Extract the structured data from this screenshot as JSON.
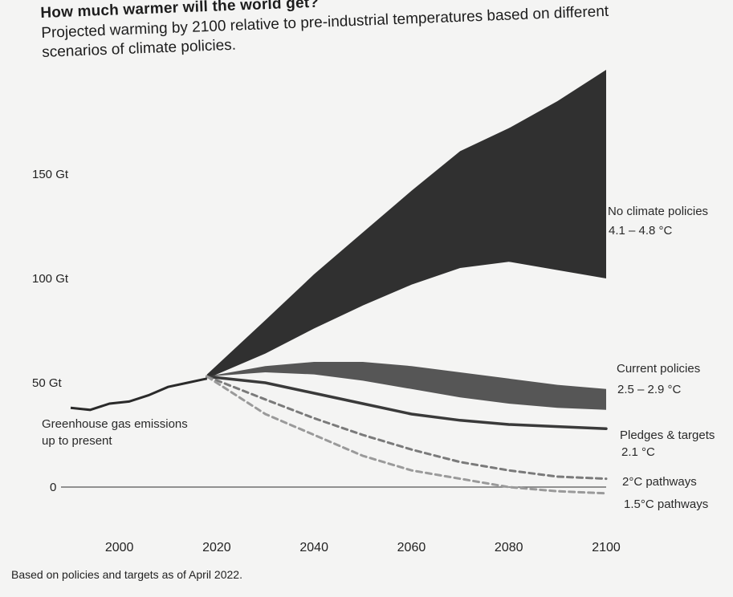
{
  "chart_data": {
    "type": "area",
    "title": "How much warmer will the world get?",
    "subtitle": "Projected warming by 2100 relative to pre-industrial temperatures based on different scenarios of climate policies.",
    "xlabel": "",
    "ylabel": "",
    "xlim": [
      1990,
      2100
    ],
    "ylim": [
      -5,
      185
    ],
    "x_ticks": [
      "2000",
      "2020",
      "2040",
      "2060",
      "2080",
      "2100"
    ],
    "y_ticks": [
      {
        "value": 0,
        "label": "0"
      },
      {
        "value": 50,
        "label": "50 Gt"
      },
      {
        "value": 100,
        "label": "100 Gt"
      },
      {
        "value": 150,
        "label": "150 Gt"
      }
    ],
    "historical": {
      "name": "Greenhouse gas emissions up to present",
      "x": [
        1990,
        1994,
        1998,
        2002,
        2006,
        2010,
        2014,
        2018
      ],
      "y": [
        38,
        37,
        40,
        41,
        44,
        48,
        50,
        52
      ]
    },
    "bands": [
      {
        "name": "No climate policies",
        "label_line1": "No climate policies",
        "label_line2": "4.1 – 4.8 °C",
        "color": "#252525",
        "x": [
          2018,
          2030,
          2040,
          2050,
          2060,
          2070,
          2080,
          2090,
          2100
        ],
        "upper": [
          54,
          80,
          102,
          122,
          142,
          161,
          172,
          185,
          200
        ],
        "lower": [
          52,
          64,
          76,
          87,
          97,
          105,
          108,
          104,
          100
        ]
      },
      {
        "name": "Current policies",
        "label_line1": "Current policies",
        "label_line2": "2.5 – 2.9 °C",
        "color": "#4d4d4d",
        "x": [
          2018,
          2030,
          2040,
          2050,
          2060,
          2070,
          2080,
          2090,
          2100
        ],
        "upper": [
          53,
          58,
          60,
          60,
          58,
          55,
          52,
          49,
          47
        ],
        "lower": [
          53,
          55,
          54,
          51,
          47,
          43,
          40,
          38,
          37
        ]
      }
    ],
    "lines": [
      {
        "name": "Pledges & targets",
        "label_line1": "Pledges & targets",
        "label_line2": "2.1 °C",
        "color": "#3a3a3a",
        "dash": "",
        "x": [
          2018,
          2030,
          2040,
          2050,
          2060,
          2070,
          2080,
          2090,
          2100
        ],
        "y": [
          53,
          50,
          45,
          40,
          35,
          32,
          30,
          29,
          28
        ]
      },
      {
        "name": "2°C pathways",
        "label_line1": "2°C pathways",
        "label_line2": "",
        "color": "#7a7a7a",
        "dash": "7,5",
        "x": [
          2018,
          2030,
          2040,
          2050,
          2060,
          2070,
          2080,
          2090,
          2100
        ],
        "y": [
          53,
          42,
          33,
          25,
          18,
          12,
          8,
          5,
          4
        ]
      },
      {
        "name": "1.5°C pathways",
        "label_line1": "1.5°C pathways",
        "label_line2": "",
        "color": "#9a9a9a",
        "dash": "7,5",
        "x": [
          2018,
          2030,
          2040,
          2050,
          2060,
          2070,
          2080,
          2090,
          2100
        ],
        "y": [
          53,
          35,
          25,
          15,
          8,
          4,
          0,
          -2,
          -3
        ]
      }
    ],
    "footnote": "Based on policies and targets as of April 2022."
  }
}
